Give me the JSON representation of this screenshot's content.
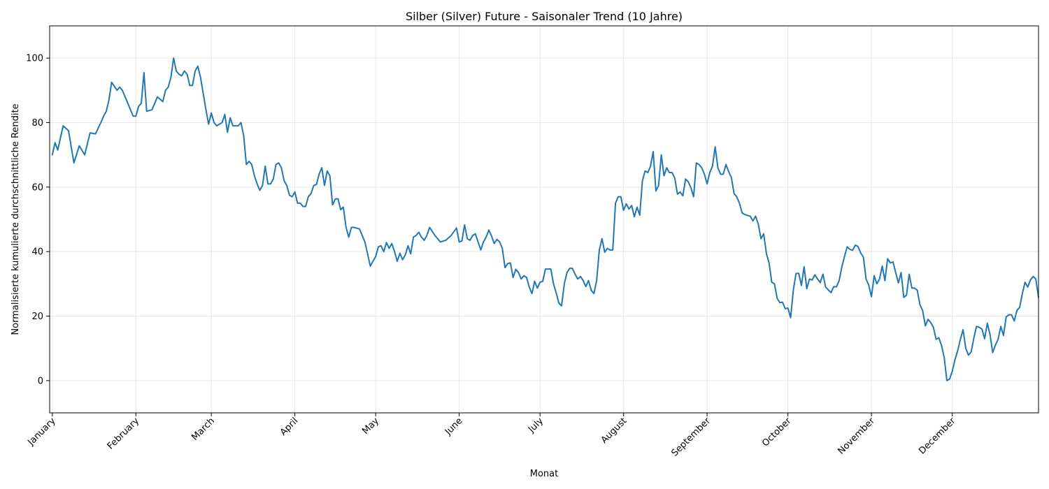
{
  "chart_data": {
    "type": "line",
    "title": "Silber (Silver) Future - Saisonaler Trend (10 Jahre)",
    "xlabel": "Monat",
    "ylabel": "Normalisierte kumulierte durchschnittliche Rendite",
    "x_tick_labels": [
      "January",
      "February",
      "March",
      "April",
      "May",
      "June",
      "July",
      "August",
      "September",
      "October",
      "November",
      "December"
    ],
    "x_tick_positions": [
      1,
      32,
      60,
      91,
      121,
      152,
      182,
      213,
      244,
      274,
      305,
      335
    ],
    "xlim": [
      0,
      367
    ],
    "y_tick_labels": [
      "0",
      "20",
      "40",
      "60",
      "80",
      "100"
    ],
    "y_ticks": [
      0,
      20,
      40,
      60,
      80,
      100
    ],
    "ylim": [
      -10,
      110
    ],
    "grid": true,
    "line_color": "#1f77b4",
    "series": [
      {
        "x": [
          1,
          2,
          3,
          5,
          7,
          9,
          11,
          13,
          15,
          17,
          19,
          20,
          21,
          22,
          23,
          25,
          26,
          27,
          28,
          29,
          31,
          32,
          33,
          34,
          35,
          36,
          38,
          40,
          42,
          43,
          44,
          45,
          46,
          47,
          48,
          49,
          50,
          51,
          52,
          53,
          54,
          55,
          56,
          58,
          59,
          60,
          61,
          62,
          63,
          64,
          65,
          66,
          67,
          68,
          69,
          70,
          71,
          72,
          73,
          74,
          75,
          76,
          77,
          78,
          79,
          80,
          81,
          82,
          83,
          84,
          85,
          86,
          87,
          88,
          89,
          90,
          91,
          92,
          93,
          94,
          95,
          96,
          97,
          98,
          99,
          100,
          101,
          102,
          103,
          104,
          105,
          106,
          107,
          108,
          109,
          110,
          111,
          112,
          113,
          115,
          117,
          119,
          121,
          122,
          123,
          124,
          125,
          126,
          127,
          128,
          129,
          130,
          131,
          132,
          133,
          134,
          135,
          136,
          137,
          138,
          139,
          140,
          141,
          143,
          145,
          147,
          149,
          151,
          152,
          153,
          154,
          155,
          156,
          157,
          158,
          159,
          160,
          161,
          162,
          163,
          164,
          165,
          166,
          167,
          168,
          169,
          170,
          171,
          172,
          173,
          174,
          175,
          176,
          177,
          178,
          179,
          180,
          181,
          182,
          183,
          184,
          185,
          186,
          187,
          188,
          189,
          190,
          191,
          192,
          193,
          194,
          195,
          196,
          197,
          198,
          199,
          200,
          201,
          202,
          203,
          204,
          205,
          206,
          207,
          208,
          209,
          210,
          211,
          212,
          213,
          214,
          215,
          216,
          217,
          218,
          219,
          220,
          221,
          222,
          223,
          224,
          225,
          226,
          227,
          228,
          229,
          230,
          231,
          232,
          233,
          234,
          235,
          236,
          237,
          238,
          239,
          240,
          241,
          242,
          243,
          244,
          245,
          246,
          247,
          248,
          249,
          250,
          251,
          252,
          253,
          254,
          255,
          256,
          257,
          258,
          259,
          260,
          261,
          262,
          263,
          264,
          265,
          266,
          267,
          268,
          269,
          270,
          271,
          272,
          273,
          274,
          275,
          276,
          277,
          278,
          279,
          280,
          281,
          282,
          283,
          284,
          285,
          286,
          287,
          288,
          289,
          290,
          291,
          292,
          293,
          294,
          295,
          296,
          297,
          298,
          299,
          300,
          301,
          302,
          303,
          304,
          305,
          306,
          307,
          308,
          309,
          310,
          311,
          312,
          313,
          314,
          315,
          316,
          317,
          318,
          319,
          320,
          321,
          322,
          323,
          324,
          325,
          326,
          327,
          328,
          329,
          330,
          331,
          332,
          333,
          334,
          335,
          336,
          337,
          338,
          339,
          340,
          341,
          342,
          343,
          344,
          345,
          346,
          347,
          348,
          349,
          350,
          351,
          352,
          353,
          354,
          355,
          356,
          357,
          358,
          359,
          360,
          361,
          362,
          363,
          364,
          365,
          366,
          367
        ],
        "y": [
          70,
          73.8,
          71.5,
          79,
          77.5,
          67.5,
          72.8,
          70,
          76.8,
          76.5,
          80,
          82,
          83.5,
          87,
          92.5,
          90,
          91,
          90,
          88,
          86,
          82,
          82,
          85,
          86,
          95.5,
          83.5,
          84,
          88,
          86.5,
          90,
          91,
          94,
          100,
          96,
          95,
          94.5,
          96,
          95,
          91.5,
          91.5,
          96,
          97.5,
          94,
          84,
          79.5,
          83,
          80,
          79,
          79.5,
          80,
          82.5,
          77,
          81.5,
          79,
          79,
          79,
          80,
          76,
          67,
          68,
          67,
          63.5,
          61,
          59,
          60.5,
          66.5,
          61,
          61,
          62.5,
          67,
          67.5,
          66,
          62,
          60.5,
          57.5,
          57,
          58.5,
          55,
          55,
          54,
          54,
          57,
          58,
          60.5,
          60.8,
          64,
          66,
          60.5,
          65,
          63.5,
          54.5,
          56.3,
          56.4,
          53,
          53.8,
          47.5,
          44.5,
          47.5,
          47.5,
          47,
          43,
          35.5,
          38.5,
          41.5,
          41.8,
          40,
          42.8,
          41,
          42.5,
          40,
          37,
          39.5,
          37.5,
          39,
          41.8,
          39.3,
          44.5,
          45,
          46,
          44.5,
          43.5,
          45,
          47.5,
          45,
          43,
          43.5,
          45,
          47.3,
          43,
          43.3,
          48.3,
          44,
          43.5,
          45,
          45.5,
          43,
          40.5,
          43,
          44.5,
          46.7,
          44.8,
          42.5,
          43.8,
          43,
          41,
          35,
          36.3,
          36.5,
          32,
          34.5,
          33.5,
          31.5,
          32.5,
          32,
          29,
          27,
          30.8,
          28.7,
          30.5,
          30.8,
          34.6,
          34.6,
          34.6,
          30,
          27.2,
          24,
          23.2,
          30,
          33.5,
          34.8,
          34.8,
          33,
          31.5,
          32.3,
          31,
          29.2,
          31,
          28,
          27,
          31,
          40.5,
          44,
          39.8,
          41,
          40.5,
          40.5,
          55,
          57,
          57,
          52.8,
          54.8,
          53.2,
          54.3,
          50.8,
          53.8,
          51.3,
          62,
          65,
          64.5,
          66.5,
          71,
          58.8,
          60.5,
          70,
          63.5,
          66,
          64.5,
          64.5,
          62.8,
          57.8,
          58.5,
          57.3,
          62.5,
          61.7,
          59.8,
          57,
          67.5,
          67,
          66,
          64,
          61,
          64.5,
          66.5,
          72.5,
          66,
          64,
          64,
          67,
          64.8,
          63,
          58,
          57,
          55,
          52,
          51.5,
          51.2,
          51,
          49.5,
          51,
          48.5,
          44,
          45.5,
          39.5,
          36.5,
          30.5,
          30,
          25.5,
          24.2,
          24.3,
          22.3,
          22.5,
          19.5,
          28,
          33.2,
          33.3,
          29.5,
          35.3,
          28.5,
          31.5,
          31.2,
          32.8,
          31.5,
          30.4,
          33,
          29,
          28.1,
          27.3,
          29.1,
          29.1,
          31,
          35.2,
          38.5,
          41.5,
          40.7,
          40.4,
          42,
          41.6,
          39.6,
          38.3,
          31.5,
          29.6,
          26,
          32.5,
          30,
          31.5,
          35.5,
          31,
          37.8,
          36.5,
          36.8,
          33.5,
          30.3,
          33.5,
          25.8,
          26.5,
          33,
          28.7,
          28.7,
          28,
          23.5,
          21.7,
          17,
          19,
          18,
          16.5,
          12.8,
          13.3,
          10.9,
          7.2,
          0,
          0.5,
          2.9,
          6.5,
          9.3,
          12.8,
          15.8,
          10,
          7.9,
          8.9,
          13.2,
          16.8,
          16.5,
          16,
          13,
          17.8,
          14.3,
          8.7,
          11,
          12.8,
          16.8,
          14,
          19.8,
          20.4,
          20.4,
          18.5,
          21.8,
          22.7,
          27,
          30.5,
          29,
          31.2,
          32.3,
          31.5,
          25.8
        ]
      }
    ]
  }
}
